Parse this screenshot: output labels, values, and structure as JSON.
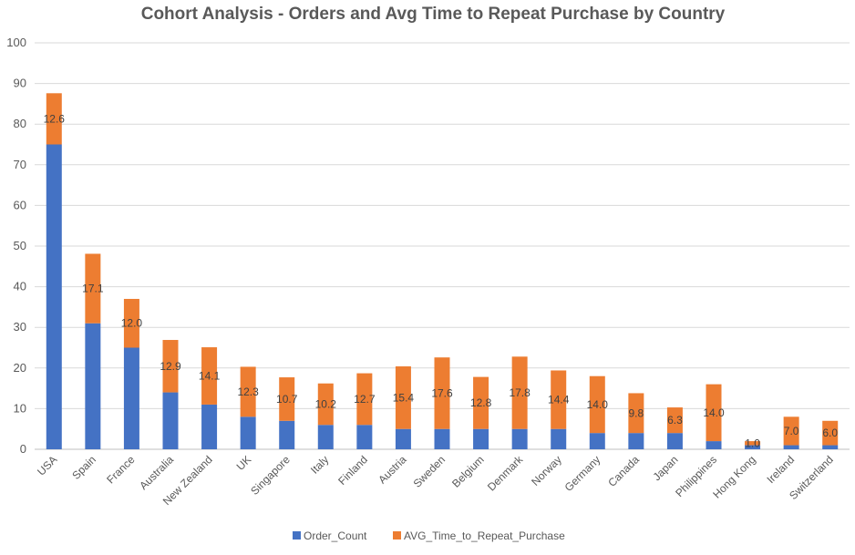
{
  "chart_data": {
    "type": "bar",
    "stacked": true,
    "title": "Cohort Analysis - Orders and Avg Time to Repeat Purchase by Country",
    "xlabel": "",
    "ylabel": "",
    "ylim": [
      0,
      100
    ],
    "yticks": [
      0,
      10,
      20,
      30,
      40,
      50,
      60,
      70,
      80,
      90,
      100
    ],
    "yticks_text": [
      "0",
      "10",
      "20",
      "30",
      "40",
      "50",
      "60",
      "70",
      "80",
      "90",
      "100"
    ],
    "grid": true,
    "legend": "bottom",
    "categories": [
      "USA",
      "Spain",
      "France",
      "Australia",
      "New Zealand",
      "UK",
      "Singapore",
      "Italy",
      "Finland",
      "Austria",
      "Sweden",
      "Belgium",
      "Denmark",
      "Norway",
      "Germany",
      "Canada",
      "Japan",
      "Philippines",
      "Hong Kong",
      "Ireland",
      "Switzerland"
    ],
    "series": [
      {
        "name": "Order_Count",
        "color": "#4472c4",
        "values": [
          75,
          31,
          25,
          14,
          11,
          8,
          7,
          6,
          6,
          5,
          5,
          5,
          5,
          5,
          4,
          4,
          4,
          2,
          1,
          1,
          1
        ]
      },
      {
        "name": "AVG_Time_to_Repeat_Purchase",
        "color": "#ed7d31",
        "values": [
          12.6,
          17.1,
          12.0,
          12.9,
          14.1,
          12.3,
          10.7,
          10.2,
          12.7,
          15.4,
          17.6,
          12.8,
          17.8,
          14.4,
          14.0,
          9.8,
          6.3,
          14.0,
          1.0,
          7.0,
          6.0
        ],
        "labels": [
          "12.6",
          "17.1",
          "12.0",
          "12.9",
          "14.1",
          "12.3",
          "10.7",
          "10.2",
          "12.7",
          "15.4",
          "17.6",
          "12.8",
          "17.8",
          "14.4",
          "14.0",
          "9.8",
          "6.3",
          "14.0",
          "1.0",
          "7.0",
          "6.0"
        ]
      }
    ]
  }
}
